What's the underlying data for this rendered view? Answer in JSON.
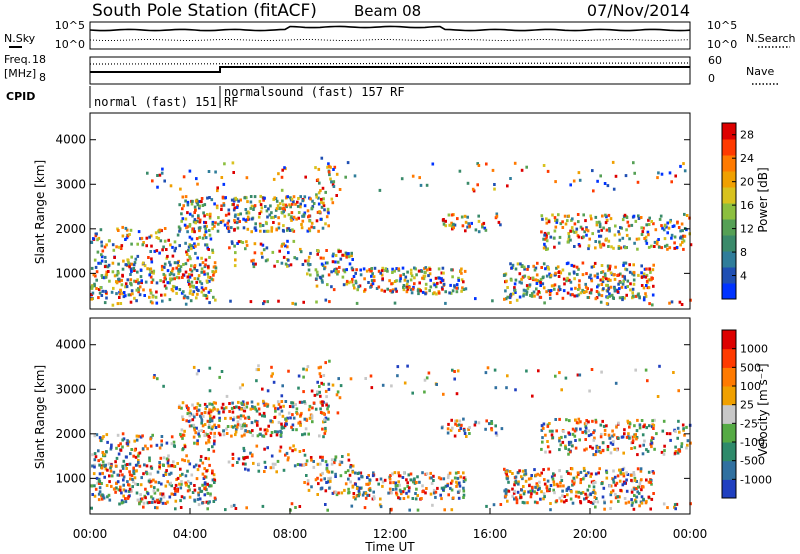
{
  "header": {
    "station": "South Pole Station (fitACF)",
    "beam": "Beam 08",
    "date": "07/Nov/2014"
  },
  "labels": {
    "nsky": "N.Sky",
    "nsearch": "N.Search",
    "freq": "Freq.",
    "freq_unit": "[MHz]",
    "nave": "Nave",
    "cpid": "CPID"
  },
  "top_axes": {
    "noise_left_ticks": [
      "10^5",
      "10^0"
    ],
    "noise_right_ticks": [
      "10^5",
      "10^0"
    ],
    "freq_ticks": [
      "18",
      "8"
    ],
    "nave_ticks": [
      "60",
      "0"
    ]
  },
  "cpid": [
    {
      "label": "normal (fast) 151 RF",
      "start_hour": 0.0,
      "end_hour": 5.2
    },
    {
      "label": "normalsound (fast) 157 RF",
      "start_hour": 5.2,
      "end_hour": 24.0
    }
  ],
  "chart_data": [
    {
      "type": "heatmap",
      "name": "power-panel",
      "xlabel": "",
      "ylabel": "Slant Range [km]",
      "xlim": [
        0,
        24
      ],
      "ylim": [
        200,
        4600
      ],
      "y_ticks": [
        "1000",
        "2000",
        "3000",
        "4000"
      ],
      "colorbar": {
        "label": "Power [dB]",
        "ticks": [
          "4",
          "8",
          "12",
          "16",
          "20",
          "24",
          "28"
        ],
        "range": [
          0,
          30
        ],
        "colors": [
          "#0033ff",
          "#1f4fb3",
          "#2f7d9a",
          "#3a8a6a",
          "#55a055",
          "#8cbf3f",
          "#d8c21e",
          "#f0a000",
          "#ff7a00",
          "#ff3a00",
          "#dd0000"
        ]
      }
    },
    {
      "type": "heatmap",
      "name": "velocity-panel",
      "xlabel": "Time UT",
      "ylabel": "Slant Range [km]",
      "xlim": [
        0,
        24
      ],
      "ylim": [
        200,
        4600
      ],
      "x_ticks": [
        "00:00",
        "04:00",
        "08:00",
        "12:00",
        "16:00",
        "20:00",
        "00:00"
      ],
      "y_ticks": [
        "1000",
        "2000",
        "3000",
        "4000"
      ],
      "colorbar": {
        "label": "Velocity [m s⁻¹]",
        "ticks": [
          "1000",
          "500",
          "100",
          "25",
          "-25",
          "-100",
          "-500",
          "-1000"
        ],
        "colors": [
          "#2040c0",
          "#3070a0",
          "#2e8a6a",
          "#55aa44",
          "#c8c8c8",
          "#f0a000",
          "#ff7a00",
          "#ff3a00",
          "#dd0000"
        ]
      }
    }
  ]
}
